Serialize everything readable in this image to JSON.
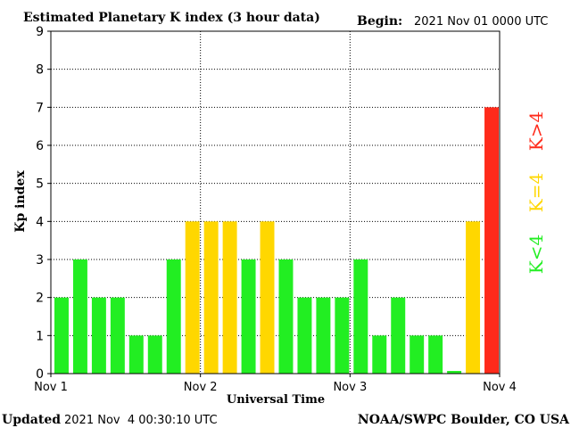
{
  "header": {
    "title": "Estimated Planetary K index (3 hour data)",
    "begin_label": "Begin:",
    "begin_value": "2021 Nov 01 0000 UTC"
  },
  "footer": {
    "updated_label": "Updated",
    "updated_value": "2021 Nov  4 00:30:10 UTC",
    "source": "NOAA/SWPC Boulder, CO USA"
  },
  "colors": {
    "low": "#22ee22",
    "storm_threshold": "#ffd700",
    "high": "#ff2a1a",
    "grid": "#000000"
  },
  "legend": [
    {
      "label": "K<4",
      "color_key": "low"
    },
    {
      "label": "K=4",
      "color_key": "storm_threshold"
    },
    {
      "label": "K>4",
      "color_key": "high"
    }
  ],
  "chart_data": {
    "type": "bar",
    "title": "Estimated Planetary K index (3 hour data)",
    "xlabel": "Universal Time",
    "ylabel": "Kp index",
    "ylim": [
      0,
      9
    ],
    "yticks": [
      "0",
      "1",
      "2",
      "3",
      "4",
      "5",
      "6",
      "7",
      "8",
      "9"
    ],
    "xticks": [
      "Nov 1",
      "Nov 2",
      "Nov 3",
      "Nov 4"
    ],
    "grid": true,
    "legend_placement": "right",
    "values": [
      2,
      3,
      2,
      2,
      1,
      1,
      3,
      4,
      4,
      4,
      3,
      4,
      3,
      2,
      2,
      2,
      3,
      1,
      2,
      1,
      1,
      0.07,
      4,
      7
    ]
  }
}
